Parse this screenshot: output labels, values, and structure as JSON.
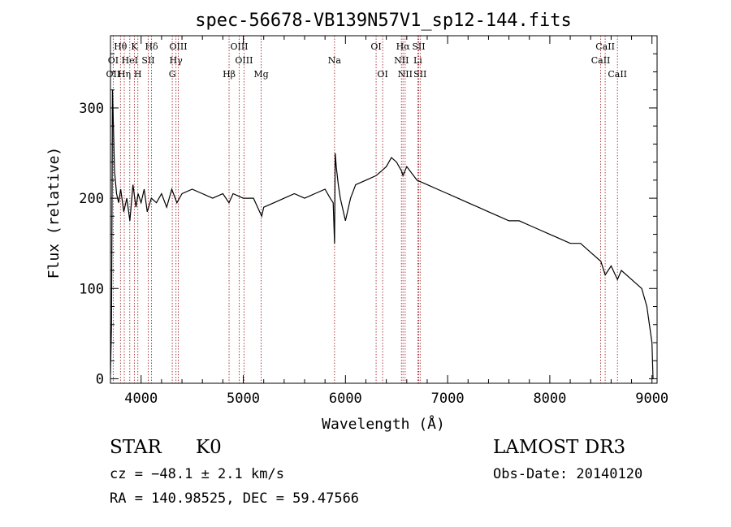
{
  "chart_data": {
    "type": "line",
    "title": "spec-56678-VB139N57V1_sp12-144.fits",
    "xlabel": "Wavelength (Å)",
    "ylabel": "Flux (relative)",
    "xlim": [
      3700,
      9050
    ],
    "ylim": [
      -5,
      380
    ],
    "xticks": [
      4000,
      5000,
      6000,
      7000,
      8000,
      9000
    ],
    "yticks": [
      0,
      100,
      200,
      300
    ],
    "grid": false,
    "series": [
      {
        "name": "flux",
        "x": [
          3700,
          3710,
          3720,
          3740,
          3760,
          3780,
          3800,
          3830,
          3860,
          3890,
          3920,
          3950,
          3970,
          4000,
          4030,
          4060,
          4100,
          4150,
          4200,
          4250,
          4300,
          4350,
          4400,
          4500,
          4600,
          4700,
          4800,
          4860,
          4900,
          5000,
          5100,
          5180,
          5200,
          5300,
          5400,
          5500,
          5600,
          5700,
          5800,
          5850,
          5880,
          5893,
          5900,
          5910,
          5930,
          5950,
          6000,
          6050,
          6100,
          6200,
          6300,
          6350,
          6400,
          6450,
          6500,
          6550,
          6563,
          6600,
          6700,
          6800,
          6900,
          7000,
          7100,
          7200,
          7300,
          7400,
          7500,
          7600,
          7700,
          7800,
          7900,
          8000,
          8100,
          8200,
          8300,
          8400,
          8500,
          8542,
          8600,
          8662,
          8700,
          8800,
          8900,
          8950,
          9000,
          9010
        ],
        "values": [
          5,
          60,
          320,
          230,
          205,
          195,
          210,
          185,
          200,
          175,
          215,
          190,
          205,
          195,
          210,
          185,
          200,
          195,
          205,
          190,
          210,
          195,
          205,
          210,
          205,
          200,
          205,
          195,
          205,
          200,
          200,
          180,
          190,
          195,
          200,
          205,
          200,
          205,
          210,
          200,
          195,
          150,
          250,
          235,
          215,
          200,
          175,
          200,
          215,
          220,
          225,
          230,
          235,
          245,
          240,
          230,
          225,
          235,
          220,
          215,
          210,
          205,
          200,
          195,
          190,
          185,
          180,
          175,
          175,
          170,
          165,
          160,
          155,
          150,
          150,
          140,
          130,
          115,
          125,
          110,
          120,
          110,
          100,
          80,
          40,
          0
        ]
      }
    ],
    "line_labels": [
      {
        "name": "Hθ",
        "x": 3798,
        "tier": 1
      },
      {
        "name": "K",
        "x": 3934,
        "tier": 1
      },
      {
        "name": "Hδ",
        "x": 4102,
        "tier": 1
      },
      {
        "name": "OIII",
        "x": 4364,
        "tier": 1
      },
      {
        "name": "OIII",
        "x": 4960,
        "tier": 1
      },
      {
        "name": "OI",
        "x": 6300,
        "tier": 1
      },
      {
        "name": "Hα",
        "x": 6563,
        "tier": 1
      },
      {
        "name": "SII",
        "x": 6717,
        "tier": 1
      },
      {
        "name": "CaII",
        "x": 8542,
        "tier": 1
      },
      {
        "name": "OI",
        "x": 3727,
        "tier": 2
      },
      {
        "name": "HeI",
        "x": 3889,
        "tier": 2
      },
      {
        "name": "SII",
        "x": 4070,
        "tier": 2
      },
      {
        "name": "Hγ",
        "x": 4341,
        "tier": 2
      },
      {
        "name": "OIII",
        "x": 5007,
        "tier": 2
      },
      {
        "name": "Na",
        "x": 5893,
        "tier": 2
      },
      {
        "name": "NII",
        "x": 6548,
        "tier": 2
      },
      {
        "name": "Li",
        "x": 6708,
        "tier": 2
      },
      {
        "name": "CaII",
        "x": 8498,
        "tier": 2
      },
      {
        "name": "OII",
        "x": 3727,
        "tier": 3
      },
      {
        "name": "Hη",
        "x": 3835,
        "tier": 3
      },
      {
        "name": "H",
        "x": 3968,
        "tier": 3
      },
      {
        "name": "G",
        "x": 4305,
        "tier": 3
      },
      {
        "name": "Hβ",
        "x": 4861,
        "tier": 3
      },
      {
        "name": "Mg",
        "x": 5175,
        "tier": 3
      },
      {
        "name": "OI",
        "x": 6364,
        "tier": 3
      },
      {
        "name": "NII",
        "x": 6584,
        "tier": 3
      },
      {
        "name": "SII",
        "x": 6731,
        "tier": 3
      },
      {
        "name": "CaII",
        "x": 8662,
        "tier": 3
      }
    ],
    "marker_lines_x": [
      3727,
      3798,
      3835,
      3889,
      3934,
      3968,
      4070,
      4102,
      4305,
      4341,
      4364,
      4861,
      4960,
      5007,
      5175,
      5893,
      6300,
      6364,
      6548,
      6563,
      6584,
      6708,
      6717,
      6731,
      8498,
      8542,
      8662
    ]
  },
  "info": {
    "object_class": "STAR",
    "subclass": "K0",
    "survey": "LAMOST DR3",
    "redshift": "cz = −48.1 ± 2.1 km/s",
    "obs_date": "Obs-Date: 20140120",
    "coords": "RA = 140.98525, DEC =  59.47566"
  },
  "colors": {
    "line_marker": "#a0282d",
    "spectrum": "#000000",
    "axis": "#000000"
  }
}
